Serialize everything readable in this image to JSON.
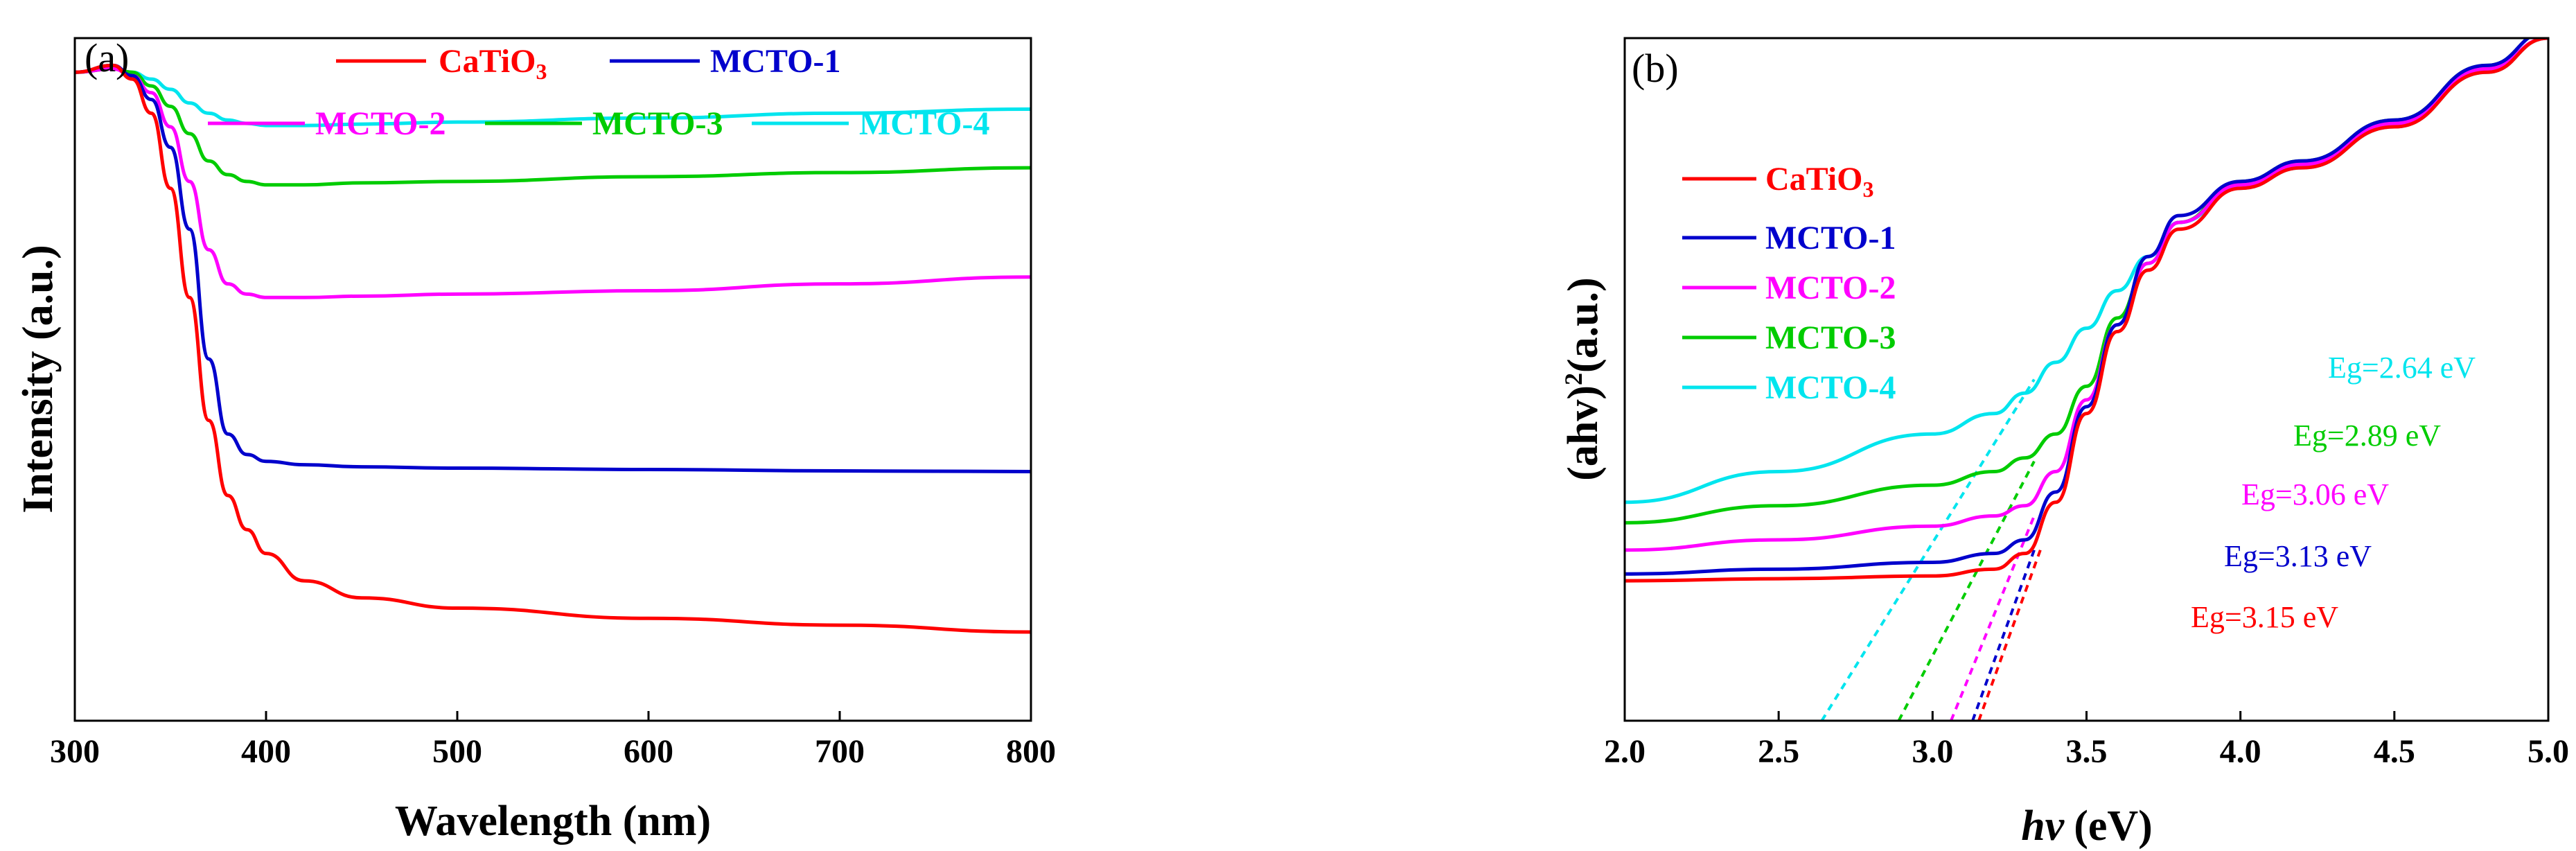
{
  "chart_data": [
    {
      "panel_label": "(a)",
      "type": "line",
      "xlabel": "Wavelength (nm)",
      "ylabel": "Intensity (a.u.)",
      "xlim": [
        300,
        800
      ],
      "ylim": [
        0,
        1
      ],
      "xticks": [
        300,
        400,
        500,
        600,
        700,
        800
      ],
      "y_ticks_labeled": false,
      "legend_position": "top",
      "series": [
        {
          "name": "CaTiO3",
          "name_main": "CaTiO",
          "name_sub": "3",
          "color": "#ff0000",
          "x": [
            300,
            320,
            330,
            340,
            350,
            360,
            370,
            380,
            390,
            400,
            420,
            450,
            500,
            600,
            700,
            800
          ],
          "y": [
            0.95,
            0.96,
            0.94,
            0.89,
            0.78,
            0.62,
            0.44,
            0.33,
            0.28,
            0.245,
            0.205,
            0.18,
            0.165,
            0.15,
            0.14,
            0.13
          ]
        },
        {
          "name": "MCTO-1",
          "color": "#0000cc",
          "x": [
            300,
            320,
            330,
            340,
            350,
            360,
            370,
            380,
            390,
            400,
            420,
            450,
            500,
            600,
            700,
            800
          ],
          "y": [
            0.95,
            0.96,
            0.945,
            0.91,
            0.84,
            0.72,
            0.53,
            0.42,
            0.39,
            0.38,
            0.375,
            0.372,
            0.37,
            0.368,
            0.366,
            0.365
          ]
        },
        {
          "name": "MCTO-2",
          "color": "#ff00ff",
          "x": [
            300,
            320,
            330,
            340,
            350,
            360,
            370,
            380,
            390,
            400,
            420,
            450,
            500,
            600,
            700,
            800
          ],
          "y": [
            0.95,
            0.955,
            0.945,
            0.92,
            0.87,
            0.79,
            0.69,
            0.64,
            0.625,
            0.62,
            0.62,
            0.622,
            0.625,
            0.63,
            0.64,
            0.65
          ]
        },
        {
          "name": "MCTO-3",
          "color": "#00cc00",
          "x": [
            300,
            320,
            330,
            340,
            350,
            360,
            370,
            380,
            390,
            400,
            420,
            450,
            500,
            600,
            700,
            800
          ],
          "y": [
            0.95,
            0.955,
            0.95,
            0.93,
            0.9,
            0.86,
            0.82,
            0.8,
            0.79,
            0.785,
            0.785,
            0.788,
            0.79,
            0.797,
            0.803,
            0.81
          ]
        },
        {
          "name": "MCTO-4",
          "color": "#00e5ee",
          "x": [
            300,
            320,
            330,
            340,
            350,
            360,
            370,
            380,
            390,
            400,
            420,
            450,
            500,
            600,
            700,
            800
          ],
          "y": [
            0.95,
            0.955,
            0.95,
            0.94,
            0.925,
            0.905,
            0.89,
            0.88,
            0.875,
            0.872,
            0.872,
            0.874,
            0.877,
            0.883,
            0.89,
            0.896
          ]
        }
      ]
    },
    {
      "panel_label": "(b)",
      "type": "line",
      "xlabel_main": "hv",
      "xlabel_unit": "(eV)",
      "ylabel_main": "(ahv)",
      "ylabel_sup": "2",
      "ylabel_unit": "(a.u.)",
      "xlim": [
        2.0,
        5.0
      ],
      "ylim": [
        0,
        1
      ],
      "xticks": [
        "2.0",
        "2.5",
        "3.0",
        "3.5",
        "4.0",
        "4.5",
        "5.0"
      ],
      "y_ticks_labeled": false,
      "legend_position": "upper-left",
      "series": [
        {
          "name": "CaTiO3",
          "name_main": "CaTiO",
          "name_sub": "3",
          "color": "#ff0000",
          "x": [
            2.0,
            2.5,
            3.0,
            3.2,
            3.3,
            3.4,
            3.5,
            3.6,
            3.7,
            3.8,
            4.0,
            4.2,
            4.5,
            4.8,
            5.0
          ],
          "y": [
            0.205,
            0.208,
            0.212,
            0.222,
            0.245,
            0.32,
            0.45,
            0.57,
            0.66,
            0.72,
            0.78,
            0.81,
            0.87,
            0.95,
            1.0
          ]
        },
        {
          "name": "MCTO-1",
          "color": "#0000cc",
          "x": [
            2.0,
            2.5,
            3.0,
            3.2,
            3.3,
            3.4,
            3.5,
            3.6,
            3.7,
            3.8,
            4.0,
            4.2,
            4.5,
            4.8,
            5.0
          ],
          "y": [
            0.215,
            0.222,
            0.232,
            0.245,
            0.265,
            0.335,
            0.46,
            0.58,
            0.68,
            0.74,
            0.79,
            0.82,
            0.88,
            0.96,
            1.01
          ]
        },
        {
          "name": "MCTO-2",
          "color": "#ff00ff",
          "x": [
            2.0,
            2.5,
            3.0,
            3.2,
            3.3,
            3.4,
            3.5,
            3.6,
            3.7,
            3.8,
            4.0,
            4.2,
            4.5,
            4.8,
            5.0
          ],
          "y": [
            0.25,
            0.265,
            0.285,
            0.3,
            0.315,
            0.365,
            0.47,
            0.58,
            0.67,
            0.73,
            0.785,
            0.815,
            0.875,
            0.955,
            1.0
          ]
        },
        {
          "name": "MCTO-3",
          "color": "#00cc00",
          "x": [
            2.0,
            2.5,
            3.0,
            3.2,
            3.3,
            3.4,
            3.5,
            3.6,
            3.7,
            3.8,
            4.0,
            4.2,
            4.5,
            4.8,
            5.0
          ],
          "y": [
            0.29,
            0.315,
            0.345,
            0.365,
            0.385,
            0.42,
            0.49,
            0.59,
            0.67,
            0.73,
            0.79,
            0.82,
            0.88,
            0.96,
            1.01
          ]
        },
        {
          "name": "MCTO-4",
          "color": "#00e5ee",
          "x": [
            2.0,
            2.5,
            3.0,
            3.2,
            3.3,
            3.4,
            3.5,
            3.6,
            3.7,
            3.8,
            4.0,
            4.2,
            4.5,
            4.8,
            5.0
          ],
          "y": [
            0.32,
            0.365,
            0.42,
            0.45,
            0.48,
            0.525,
            0.575,
            0.63,
            0.68,
            0.73,
            0.78,
            0.81,
            0.87,
            0.95,
            1.0
          ]
        }
      ],
      "tangent_lines": [
        {
          "series": "CaTiO3",
          "color": "#ff0000",
          "from": [
            3.15,
            0.0
          ],
          "to": [
            3.35,
            0.25
          ]
        },
        {
          "series": "MCTO-1",
          "color": "#0000cc",
          "from": [
            3.13,
            0.0
          ],
          "to": [
            3.33,
            0.25
          ]
        },
        {
          "series": "MCTO-2",
          "color": "#ff00ff",
          "from": [
            3.06,
            0.0
          ],
          "to": [
            3.33,
            0.3
          ]
        },
        {
          "series": "MCTO-3",
          "color": "#00cc00",
          "from": [
            2.89,
            0.0
          ],
          "to": [
            3.33,
            0.38
          ]
        },
        {
          "series": "MCTO-4",
          "color": "#00e5ee",
          "from": [
            2.64,
            0.0
          ],
          "to": [
            3.33,
            0.5
          ]
        }
      ],
      "annotations": [
        {
          "text": "Eg=2.64 eV",
          "color": "#00e5ee"
        },
        {
          "text": "Eg=2.89 eV",
          "color": "#00cc00"
        },
        {
          "text": "Eg=3.06 eV",
          "color": "#ff00ff"
        },
        {
          "text": "Eg=3.13 eV",
          "color": "#0000cc"
        },
        {
          "text": "Eg=3.15 eV",
          "color": "#ff0000"
        }
      ]
    }
  ]
}
